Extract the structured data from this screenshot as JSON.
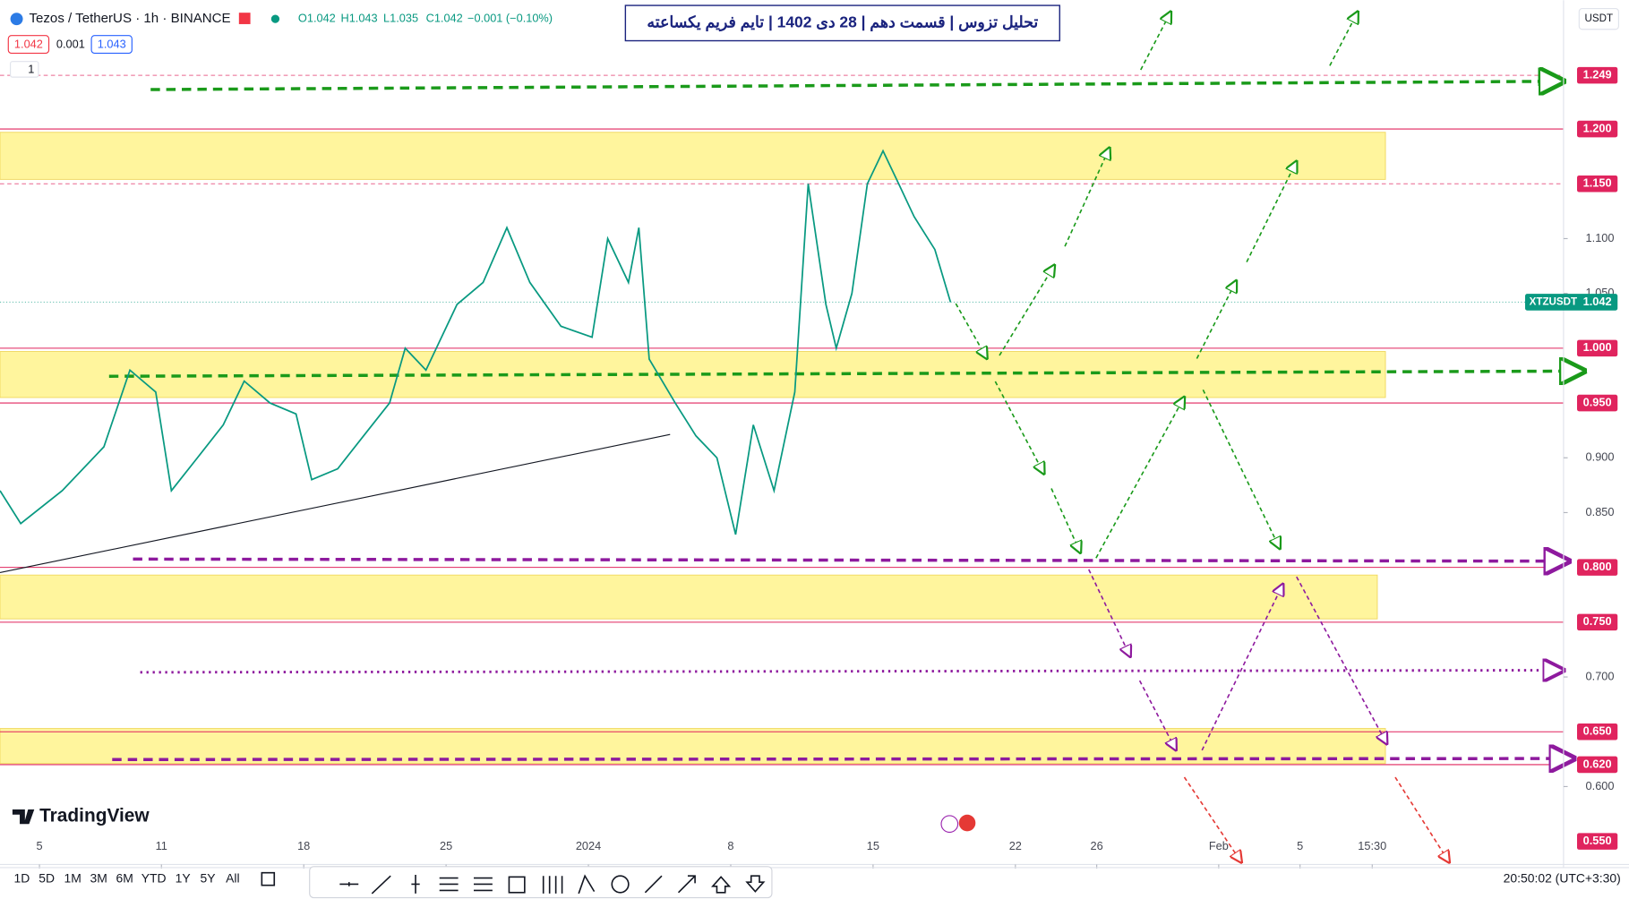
{
  "header": {
    "symbol": "Tezos / TetherUS · 1h · BINANCE",
    "open": "O1.042",
    "high": "H1.043",
    "low": "L1.035",
    "close": "C1.042",
    "change": "−0.001 (−0.10%)",
    "bid": "1.042",
    "spread": "0.001",
    "ask": "1.043",
    "indicator_count": "1",
    "currency": "USDT"
  },
  "logo": "TradingView",
  "ranges": [
    "1D",
    "5D",
    "1M",
    "3M",
    "6M",
    "YTD",
    "1Y",
    "5Y",
    "All"
  ],
  "clock": "20:50:02 (UTC+3:30)",
  "chart_data": {
    "type": "line",
    "title": "تحلیل تزوس | قسمت دهم | 28 دی 1402 | تایم فریم یکساعته",
    "x": [
      2.06,
      3.08,
      5.12,
      7.17,
      8.45,
      9.72,
      10.49,
      11.77,
      13.04,
      14.07,
      15.34,
      16.62,
      17.39,
      18.67,
      19.94,
      21.22,
      21.99,
      23.01,
      24.54,
      25.82,
      26.99,
      28.12,
      29.65,
      31.18,
      31.95,
      32.97,
      33.48,
      33.99,
      35.27,
      36.29,
      37.32,
      38.24,
      39.11,
      40.13,
      41.15,
      41.81,
      42.68,
      43.19,
      43.96,
      44.72,
      45.49,
      46.26,
      47.02,
      48.04,
      48.81
    ],
    "series": [
      {
        "name": "XTZUSDT",
        "color": "#089981",
        "values": [
          0.87,
          0.84,
          0.87,
          0.91,
          0.98,
          0.96,
          0.87,
          0.9,
          0.93,
          0.97,
          0.95,
          0.94,
          0.88,
          0.89,
          0.92,
          0.95,
          1.0,
          0.98,
          1.04,
          1.06,
          1.11,
          1.06,
          1.02,
          1.01,
          1.1,
          1.06,
          1.11,
          0.99,
          0.95,
          0.92,
          0.9,
          0.83,
          0.93,
          0.87,
          0.96,
          1.15,
          1.04,
          1.0,
          1.05,
          1.15,
          1.18,
          1.15,
          1.12,
          1.09,
          1.042
        ]
      }
    ],
    "xlim": [
      2.06,
      78.96
    ],
    "xticks": [
      {
        "value": 4,
        "label": "5"
      },
      {
        "value": 10,
        "label": "11"
      },
      {
        "value": 17,
        "label": "18"
      },
      {
        "value": 24,
        "label": "25"
      },
      {
        "value": 31,
        "label": "2024"
      },
      {
        "value": 38,
        "label": "8"
      },
      {
        "value": 45,
        "label": "15"
      },
      {
        "value": 52,
        "label": "22"
      },
      {
        "value": 56,
        "label": "26"
      },
      {
        "value": 62,
        "label": "Feb"
      },
      {
        "value": 66,
        "label": "5"
      },
      {
        "value": 69.55,
        "label": "15:30"
      }
    ],
    "ylim": [
      0.5308,
      1.3175
    ],
    "yticks": [
      {
        "value": 1.1,
        "label": "1.100"
      },
      {
        "value": 1.05,
        "label": "1.050"
      },
      {
        "value": 0.9,
        "label": "0.900"
      },
      {
        "value": 0.85,
        "label": "0.850"
      },
      {
        "value": 0.7,
        "label": "0.700"
      },
      {
        "value": 0.6,
        "label": "0.600"
      }
    ],
    "levels": [
      {
        "value": 1.249,
        "label": "1.249",
        "line": "dashed"
      },
      {
        "value": 1.2,
        "label": "1.200",
        "line": "solid"
      },
      {
        "value": 1.15,
        "label": "1.150",
        "line": "dashed"
      },
      {
        "value": 1.0,
        "label": "1.000",
        "line": "solid"
      },
      {
        "value": 0.95,
        "label": "0.950",
        "line": "solid"
      },
      {
        "value": 0.8,
        "label": "0.800",
        "line": "solid"
      },
      {
        "value": 0.75,
        "label": "0.750",
        "line": "solid"
      },
      {
        "value": 0.65,
        "label": "0.650",
        "line": "solid"
      },
      {
        "value": 0.62,
        "label": "0.620",
        "line": "solid"
      },
      {
        "value": 0.55,
        "label": "0.550",
        "line": "none"
      }
    ],
    "level_color": "#e0245e",
    "zones": [
      {
        "from": 1.154,
        "to": 1.197,
        "x_end": 70.2
      },
      {
        "from": 0.955,
        "to": 0.997,
        "x_end": 70.2
      },
      {
        "from": 0.753,
        "to": 0.793,
        "x_end": 69.8
      },
      {
        "from": 0.621,
        "to": 0.653,
        "x_end": 70.2
      }
    ],
    "zone_color": "#fff59d"
  }
}
